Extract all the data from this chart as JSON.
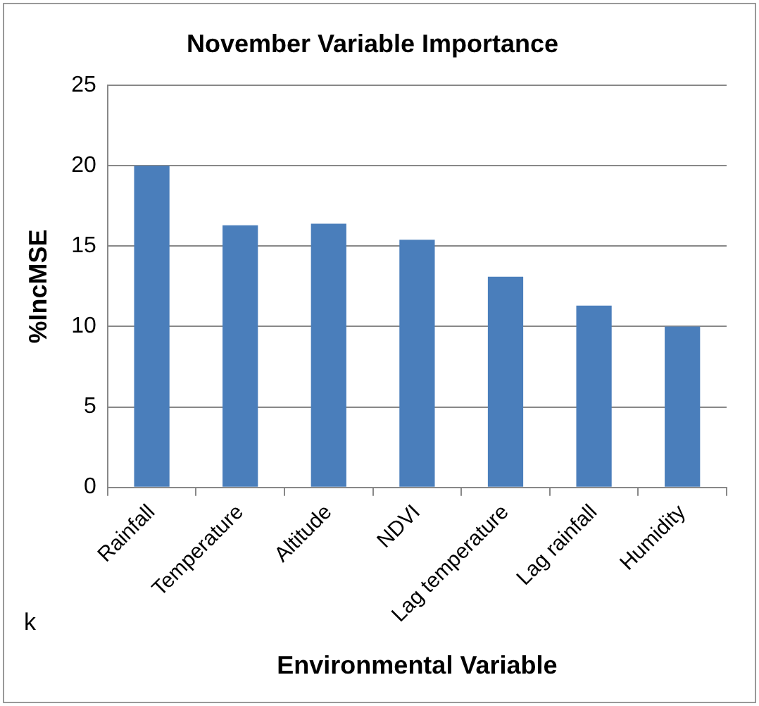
{
  "chart_data": {
    "type": "bar",
    "title": "November Variable Importance",
    "xlabel": "Environmental Variable",
    "ylabel": "%IncMSE",
    "categories": [
      "Rainfall",
      "Temperature",
      "Altitude",
      "NDVI",
      "Lag temperature",
      "Lag rainfall",
      "Humidity"
    ],
    "values": [
      20.0,
      16.3,
      16.4,
      15.4,
      13.1,
      11.3,
      10.0
    ],
    "color": "#4a7ebb",
    "ylim": [
      0,
      25
    ],
    "yticks": [
      0,
      5,
      10,
      15,
      20,
      25
    ],
    "grid": "y",
    "annotations": [
      "k"
    ]
  }
}
